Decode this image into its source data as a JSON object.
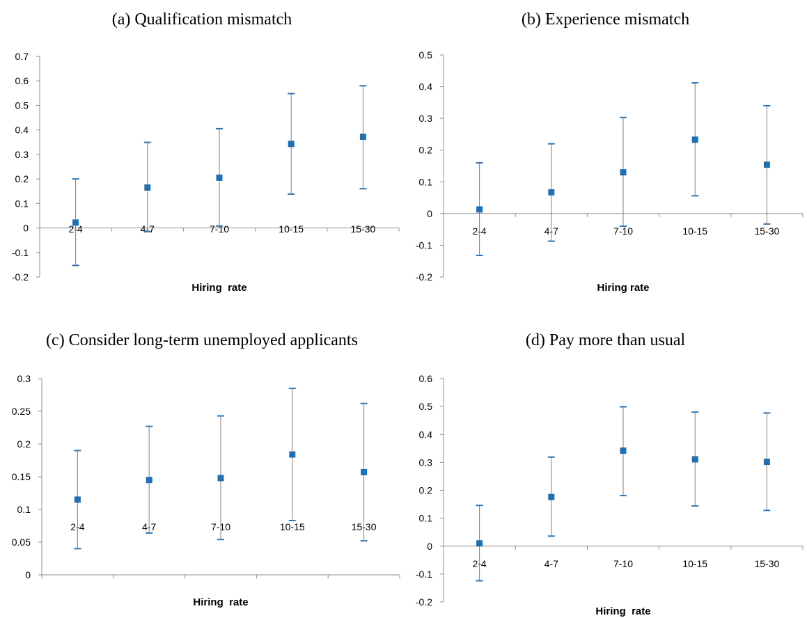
{
  "chart_data": [
    {
      "type": "errorbar",
      "title": "(a) Qualification mismatch",
      "xlabel": "Hiring  rate",
      "ylabel": "",
      "categories": [
        "2-4",
        "4-7",
        "7-10",
        "10-15",
        "15-30"
      ],
      "ylim": [
        -0.2,
        0.7
      ],
      "yticks": [
        "0.7",
        "0.6",
        "0.5",
        "0.4",
        "0.3",
        "0.2",
        "0.1",
        "0",
        "-0.1",
        "-0.2"
      ],
      "yticks_values": [
        0.7,
        0.6,
        0.5,
        0.4,
        0.3,
        0.2,
        0.1,
        0,
        -0.1,
        -0.2
      ],
      "series": [
        {
          "estimate": [
            0.022,
            0.165,
            0.205,
            0.343,
            0.372
          ],
          "lower": [
            -0.153,
            -0.015,
            0.008,
            0.138,
            0.16
          ],
          "upper": [
            0.2,
            0.349,
            0.405,
            0.548,
            0.58
          ]
        }
      ],
      "grid": false,
      "tick_labels_at_zero": false
    },
    {
      "type": "errorbar",
      "title": "(b) Experience mismatch",
      "xlabel": "Hiring rate",
      "ylabel": "",
      "categories": [
        "2-4",
        "4-7",
        "7-10",
        "10-15",
        "15-30"
      ],
      "ylim": [
        -0.2,
        0.5
      ],
      "yticks": [
        "0.5",
        "0.4",
        "0.3",
        "0.2",
        "0.1",
        "0",
        "-0.1",
        "-0.2"
      ],
      "yticks_values": [
        0.5,
        0.4,
        0.3,
        0.2,
        0.1,
        0,
        -0.1,
        -0.2
      ],
      "series": [
        {
          "estimate": [
            0.013,
            0.067,
            0.13,
            0.233,
            0.154
          ],
          "lower": [
            -0.132,
            -0.087,
            -0.04,
            0.056,
            -0.033
          ],
          "upper": [
            0.16,
            0.22,
            0.303,
            0.412,
            0.34
          ]
        }
      ],
      "grid": false,
      "tick_labels_at_zero": true
    },
    {
      "type": "errorbar",
      "title": "(c) Consider long-term unemployed applicants",
      "xlabel": "Hiring  rate",
      "ylabel": "",
      "categories": [
        "2-4",
        "4-7",
        "7-10",
        "10-15",
        "15-30"
      ],
      "ylim": [
        0,
        0.3
      ],
      "yticks": [
        "0.3",
        "0.25",
        "0.2",
        "0.15",
        "0.1",
        "0.05",
        "0"
      ],
      "yticks_values": [
        0.3,
        0.25,
        0.2,
        0.15,
        0.1,
        0.05,
        0
      ],
      "series": [
        {
          "estimate": [
            0.115,
            0.145,
            0.148,
            0.184,
            0.157
          ],
          "lower": [
            0.04,
            0.064,
            0.054,
            0.083,
            0.052
          ],
          "upper": [
            0.19,
            0.227,
            0.243,
            0.285,
            0.262
          ]
        }
      ],
      "grid": false,
      "tick_labels_at_zero": false
    },
    {
      "type": "errorbar",
      "title": "(d) Pay more than usual",
      "xlabel": "Hiring  rate",
      "ylabel": "",
      "categories": [
        "2-4",
        "4-7",
        "7-10",
        "10-15",
        "15-30"
      ],
      "ylim": [
        -0.2,
        0.6
      ],
      "yticks": [
        "0.6",
        "0.5",
        "0.4",
        "0.3",
        "0.2",
        "0.1",
        "0",
        "-0.1",
        "-0.2"
      ],
      "yticks_values": [
        0.6,
        0.5,
        0.4,
        0.3,
        0.2,
        0.1,
        0,
        -0.1,
        -0.2
      ],
      "series": [
        {
          "estimate": [
            0.01,
            0.176,
            0.342,
            0.311,
            0.302
          ],
          "lower": [
            -0.124,
            0.036,
            0.181,
            0.144,
            0.128
          ],
          "upper": [
            0.146,
            0.319,
            0.499,
            0.48,
            0.477
          ]
        }
      ],
      "grid": false,
      "tick_labels_at_zero": true
    }
  ],
  "colors": {
    "marker": "#1f6fb4",
    "cap": "#2e75b6",
    "errorbar": "#7f7f7f",
    "axis": "#8c8c8c"
  }
}
